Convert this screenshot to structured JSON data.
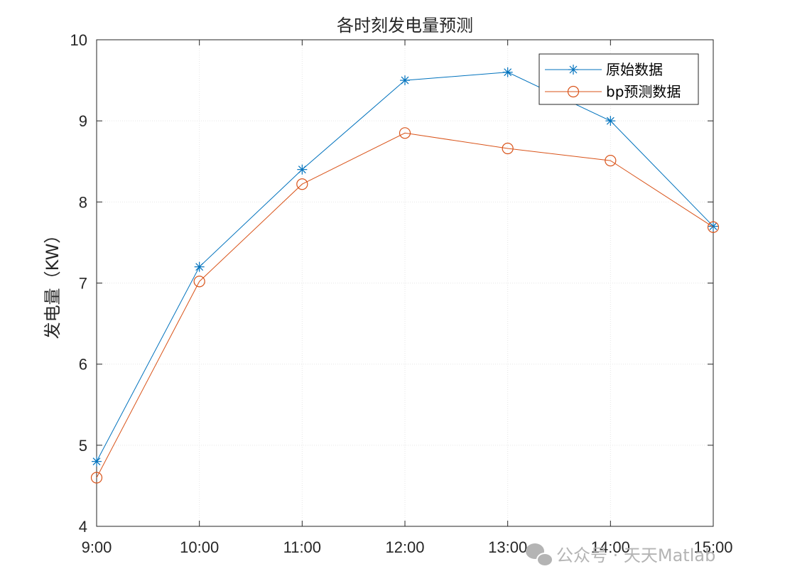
{
  "chart_data": {
    "type": "line",
    "title": "各时刻发电量预测",
    "xlabel": "",
    "ylabel": "发电量（KW）",
    "categories": [
      "9:00",
      "10:00",
      "11:00",
      "12:00",
      "13:00",
      "14:00",
      "15:00"
    ],
    "ylim": [
      4,
      10
    ],
    "yticks": [
      4,
      5,
      6,
      7,
      8,
      9,
      10
    ],
    "grid": true,
    "legend_position": "top-right",
    "series": [
      {
        "name": "原始数据",
        "marker": "asterisk",
        "color": "#0072BD",
        "values": [
          4.8,
          7.2,
          8.4,
          9.5,
          9.6,
          9.0,
          7.7
        ]
      },
      {
        "name": "bp预测数据",
        "marker": "circle",
        "color": "#D95319",
        "values": [
          4.6,
          7.02,
          8.22,
          8.85,
          8.66,
          8.51,
          7.69
        ]
      }
    ]
  },
  "watermark": {
    "text": "公众号 · 天天Matlab"
  }
}
